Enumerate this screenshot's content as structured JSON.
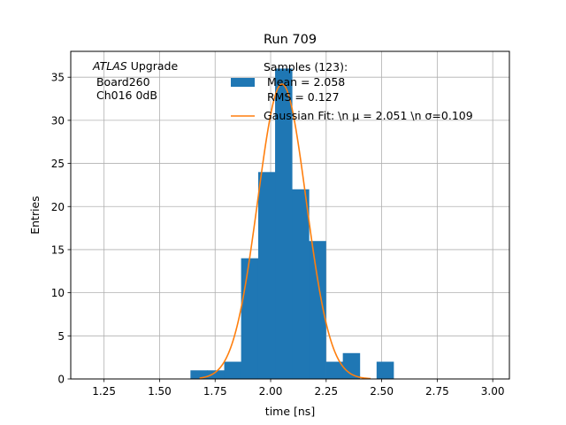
{
  "chart_data": {
    "type": "bar",
    "title": "Run 709",
    "xlabel": "time [ns]",
    "ylabel": "Entries",
    "xlim": [
      1.1,
      3.075
    ],
    "ylim": [
      0,
      38
    ],
    "grid": true,
    "x_ticks": [
      "1.25",
      "1.50",
      "1.75",
      "2.00",
      "2.25",
      "2.50",
      "2.75",
      "3.00"
    ],
    "y_ticks": [
      "0",
      "5",
      "10",
      "15",
      "20",
      "25",
      "30",
      "35"
    ],
    "annotation": {
      "line1_italic": "ATLAS",
      "line1_rest": " Upgrade",
      "line2": " Board260",
      "line3": " Ch016 0dB"
    },
    "legend": {
      "placement": "top-center",
      "hist_label_lines": [
        "Samples (123):",
        " Mean = 2.058",
        " RMS = 0.127"
      ],
      "fit_label": "Gaussian Fit: \\n μ = 2.051 \\n σ=0.109"
    },
    "histogram": {
      "color": "#1f77b4",
      "bin_width": 0.0762,
      "bins": [
        {
          "left": 1.639,
          "count": 1
        },
        {
          "left": 1.715,
          "count": 1
        },
        {
          "left": 1.791,
          "count": 2
        },
        {
          "left": 1.867,
          "count": 14
        },
        {
          "left": 1.944,
          "count": 24
        },
        {
          "left": 2.02,
          "count": 36
        },
        {
          "left": 2.096,
          "count": 22
        },
        {
          "left": 2.172,
          "count": 16
        },
        {
          "left": 2.249,
          "count": 2
        },
        {
          "left": 2.325,
          "count": 3
        },
        {
          "left": 2.401,
          "count": 0
        },
        {
          "left": 2.477,
          "count": 2
        }
      ]
    },
    "fit": {
      "color": "#ff7f0e",
      "mu": 2.051,
      "sigma": 0.109,
      "amplitude": 34.2,
      "x_range": [
        1.68,
        2.45
      ]
    }
  }
}
